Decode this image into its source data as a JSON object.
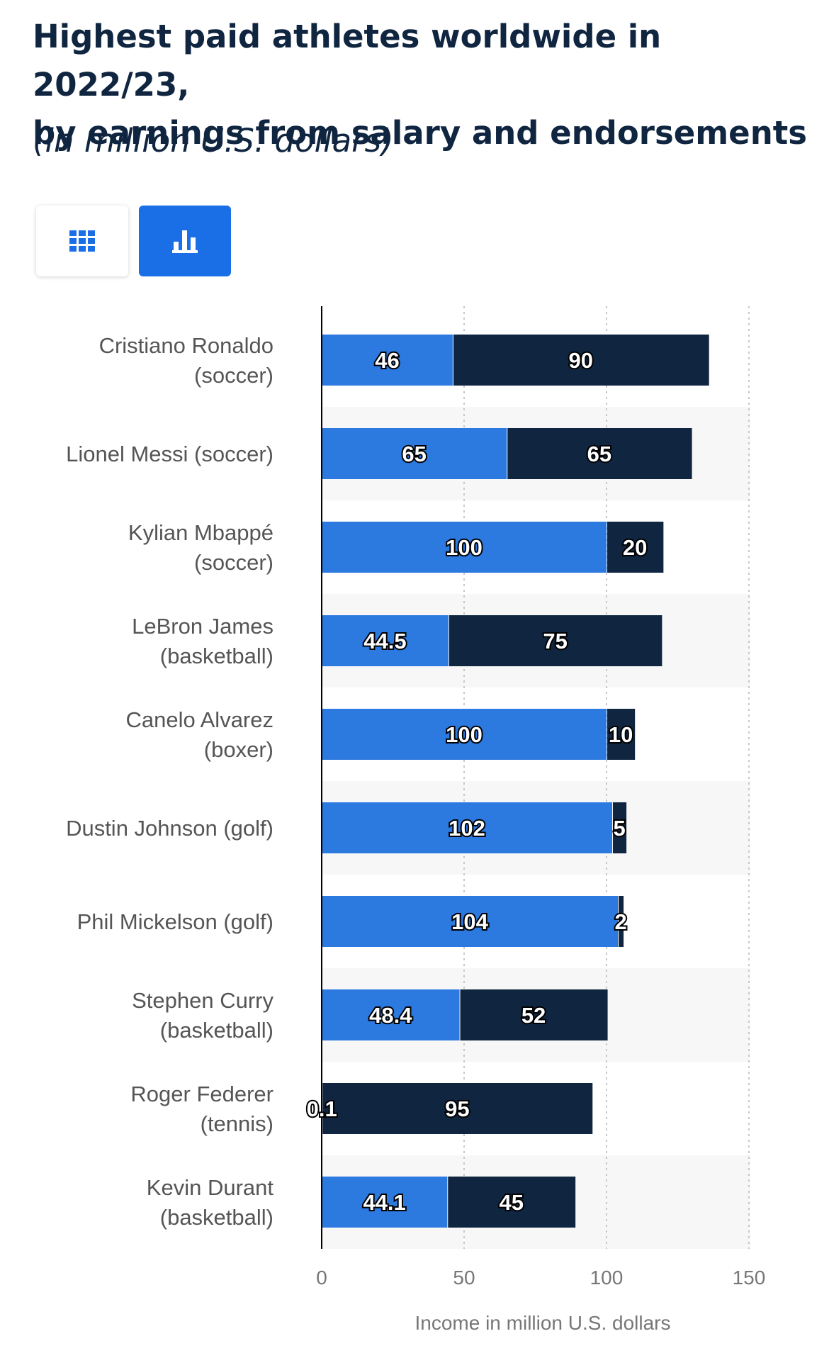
{
  "title_line1": "Highest paid athletes worldwide in 2022/23,",
  "title_line2": "by earnings from salary and endorsements",
  "subtitle": "(in million U.S. dollars)",
  "view_buttons": [
    {
      "name": "table-view",
      "icon": "grid-icon",
      "active": false
    },
    {
      "name": "chart-view",
      "icon": "bar-chart-icon",
      "active": true
    }
  ],
  "colors": {
    "salary": "#2c79e0",
    "endorsements": "#0f2540",
    "title": "#0f2540",
    "active_button": "#1a6ee6"
  },
  "chart_data": {
    "type": "bar",
    "orientation": "horizontal",
    "stacked": true,
    "categories": [
      [
        "Cristiano Ronaldo",
        "(soccer)"
      ],
      [
        "Lionel Messi (soccer)"
      ],
      [
        "Kylian Mbappé",
        "(soccer)"
      ],
      [
        "LeBron James",
        "(basketball)"
      ],
      [
        "Canelo Alvarez",
        "(boxer)"
      ],
      [
        "Dustin Johnson (golf)"
      ],
      [
        "Phil Mickelson (golf)"
      ],
      [
        "Stephen Curry",
        "(basketball)"
      ],
      [
        "Roger Federer",
        "(tennis)"
      ],
      [
        "Kevin Durant",
        "(basketball)"
      ]
    ],
    "series": [
      {
        "name": "Salary",
        "values": [
          46,
          65,
          100,
          44.5,
          100,
          102,
          104,
          48.4,
          0.1,
          44.1
        ]
      },
      {
        "name": "Endorsements",
        "values": [
          90,
          65,
          20,
          75,
          10,
          5,
          2,
          52,
          95,
          45
        ]
      }
    ],
    "xlim": [
      0,
      152
    ],
    "xticks": [
      0,
      50,
      100,
      150
    ],
    "xlabel": "Income in million U.S. dollars",
    "grid": "vertical dotted"
  }
}
